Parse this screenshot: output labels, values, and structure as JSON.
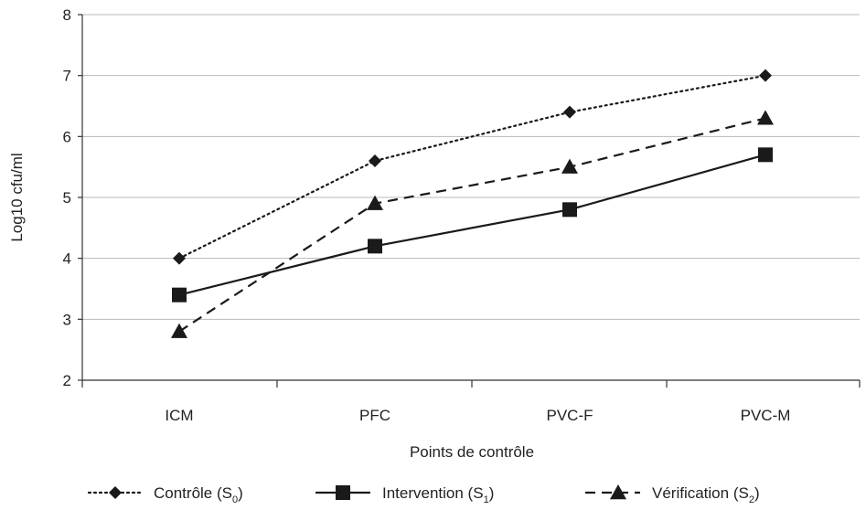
{
  "chart_data": {
    "type": "line",
    "title": "",
    "xlabel": "Points de contrôle",
    "ylabel": "Log10 cfu/ml",
    "categories": [
      "ICM",
      "PFC",
      "PVC-F",
      "PVC-M"
    ],
    "ylim": [
      2,
      8
    ],
    "yticks": [
      "2",
      "3",
      "4",
      "5",
      "6",
      "7",
      "8"
    ],
    "grid": true,
    "legend_position": "bottom",
    "series": [
      {
        "name": "Contrôle (S0)",
        "label_main": "Contrôle (S",
        "label_sub": "0",
        "label_end": ")",
        "values": [
          4.0,
          5.6,
          6.4,
          7.0
        ],
        "marker": "diamond",
        "line_style": "dotted",
        "color": "#1a1a1a"
      },
      {
        "name": "Intervention (S1)",
        "label_main": "Intervention (S",
        "label_sub": "1",
        "label_end": ")",
        "values": [
          3.4,
          4.2,
          4.8,
          5.7
        ],
        "marker": "square",
        "line_style": "solid",
        "color": "#1a1a1a"
      },
      {
        "name": "Vérification (S2)",
        "label_main": "Vérification (S",
        "label_sub": "2",
        "label_end": ")",
        "values": [
          2.8,
          4.9,
          5.5,
          6.3
        ],
        "marker": "triangle",
        "line_style": "dashed",
        "color": "#1a1a1a"
      }
    ]
  }
}
